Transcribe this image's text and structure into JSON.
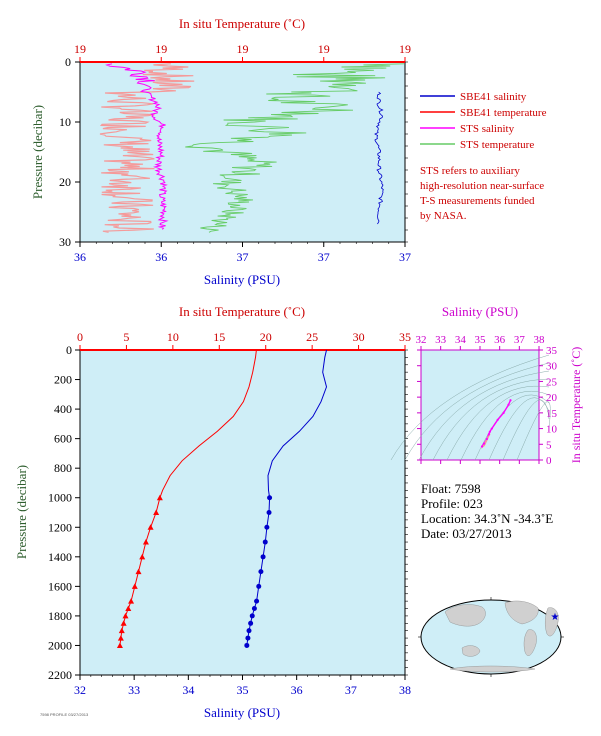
{
  "colors": {
    "plot_bg": "#cfeef7",
    "temperature": "#ff0000",
    "salinity": "#0000cc",
    "sts_salinity": "#ff00ff",
    "sts_temperature": "#66cc66",
    "sts_temperature_alt": "#f59a9a",
    "pressure_axis": "#2e5e2e",
    "ts_axis": "#cc00cc",
    "land": "#d0d0d0",
    "ocean": "#cfeef7"
  },
  "legend": {
    "items": [
      {
        "label": "SBE41 salinity",
        "color": "#0000cc"
      },
      {
        "label": "SBE41 temperature",
        "color": "#ff0000"
      },
      {
        "label": "STS salinity",
        "color": "#ff00ff"
      },
      {
        "label": "STS temperature",
        "color": "#66cc66"
      }
    ],
    "note": [
      "STS refers to auxiliary",
      "high-resolution near-surface",
      "T-S measurements funded",
      "by NASA."
    ]
  },
  "float_info": {
    "float": "Float:  7598",
    "profile": "Profile:  023",
    "location": "Location:  34.3˚N  -34.3˚E",
    "date": "Date:  03/27/2013"
  },
  "footer_note": "7598 PROFILE 03/27/2013",
  "chart_data": [
    {
      "type": "line",
      "name": "near-surface panel",
      "title": "",
      "top_axis_label": "In situ Temperature (˚C)",
      "top_ticks": [
        "19",
        "19",
        "19",
        "19",
        "19"
      ],
      "xlabel": "Salinity (PSU)",
      "x_ticks": [
        "36",
        "36",
        "37",
        "37",
        "37"
      ],
      "ylabel": "Pressure (decibar)",
      "y_ticks": [
        0,
        10,
        20,
        30
      ],
      "ylim": [
        0,
        30
      ],
      "xlim": [
        36.0,
        37.0
      ],
      "top_xlim": [
        18.9,
        19.1
      ],
      "series": [
        {
          "name": "SBE41 salinity",
          "x": [
            36.92,
            36.92,
            36.93,
            36.91,
            36.92,
            36.92,
            36.93,
            36.92,
            36.92
          ],
          "y": [
            5,
            7,
            9,
            12,
            15,
            18,
            21,
            25,
            27
          ]
        },
        {
          "name": "STS salinity",
          "x": [
            36.1,
            36.18,
            36.22,
            36.2,
            36.24,
            36.23,
            36.26,
            36.24,
            36.25,
            36.24,
            36.26,
            36.25,
            36.26,
            36.25
          ],
          "y": [
            0.5,
            1.5,
            3,
            5,
            7,
            9,
            11,
            13,
            15,
            17.5,
            20,
            22.5,
            25,
            28
          ]
        },
        {
          "name": "STS temperature",
          "x": [
            19.1,
            19.05,
            19.08,
            19.02,
            19.06,
            19.0,
            19.03,
            18.98,
            19.01,
            18.99,
            19.0,
            18.99,
            18.98
          ],
          "y": [
            0.5,
            2,
            4,
            6,
            8,
            10,
            12,
            14,
            17,
            20,
            23,
            26,
            28
          ]
        }
      ]
    },
    {
      "type": "line",
      "name": "full profile panel",
      "title": "",
      "top_axis_label": "In situ Temperature (˚C)",
      "top_ticks": [
        0,
        5,
        10,
        15,
        20,
        25,
        30,
        35
      ],
      "top_xlim": [
        0,
        35
      ],
      "xlabel": "Salinity (PSU)",
      "x_ticks": [
        32,
        33,
        34,
        35,
        36,
        37,
        38
      ],
      "xlim": [
        32,
        38
      ],
      "ylabel": "Pressure (decibar)",
      "y_ticks": [
        0,
        200,
        400,
        600,
        800,
        1000,
        1200,
        1400,
        1600,
        1800,
        2000,
        2200
      ],
      "ylim": [
        0,
        2200
      ],
      "series": [
        {
          "name": "SBE41 temperature",
          "x": [
            19.0,
            18.9,
            18.6,
            18.2,
            17.6,
            16.5,
            14.8,
            12.8,
            11.0,
            9.7,
            8.9,
            8.6,
            8.2,
            7.6,
            7.1,
            6.7,
            6.3,
            5.9,
            5.5,
            5.2,
            4.9,
            4.7,
            4.5,
            4.4,
            4.3
          ],
          "y": [
            0,
            50,
            150,
            250,
            350,
            450,
            550,
            650,
            750,
            850,
            950,
            1000,
            1100,
            1200,
            1300,
            1400,
            1500,
            1600,
            1700,
            1750,
            1800,
            1850,
            1900,
            1950,
            2000
          ]
        },
        {
          "name": "SBE41 salinity",
          "x": [
            36.55,
            36.52,
            36.48,
            36.55,
            36.45,
            36.3,
            36.05,
            35.75,
            35.55,
            35.47,
            35.48,
            35.5,
            35.49,
            35.45,
            35.42,
            35.38,
            35.34,
            35.3,
            35.26,
            35.22,
            35.18,
            35.15,
            35.12,
            35.1,
            35.08
          ],
          "y": [
            0,
            50,
            150,
            250,
            350,
            450,
            550,
            650,
            750,
            850,
            950,
            1000,
            1100,
            1200,
            1300,
            1400,
            1500,
            1600,
            1700,
            1750,
            1800,
            1850,
            1900,
            1950,
            2000
          ]
        }
      ]
    },
    {
      "type": "scatter",
      "name": "T-S inset",
      "top_axis_label": "Salinity (PSU)",
      "x_ticks": [
        32,
        33,
        34,
        35,
        36,
        37,
        38
      ],
      "xlim": [
        32,
        38
      ],
      "ylabel": "In situ Temperature (˚C)",
      "y_ticks": [
        0,
        5,
        10,
        15,
        20,
        25,
        30,
        35
      ],
      "ylim": [
        0,
        35
      ],
      "series": [
        {
          "name": "SBE41",
          "x": [
            35.1,
            35.2,
            35.35,
            35.45,
            35.5,
            35.6,
            35.9,
            36.2,
            36.45,
            36.55
          ],
          "y": [
            4.3,
            5.2,
            6.7,
            8.2,
            9.0,
            10.0,
            12.8,
            15.0,
            17.6,
            19.0
          ]
        }
      ]
    }
  ]
}
